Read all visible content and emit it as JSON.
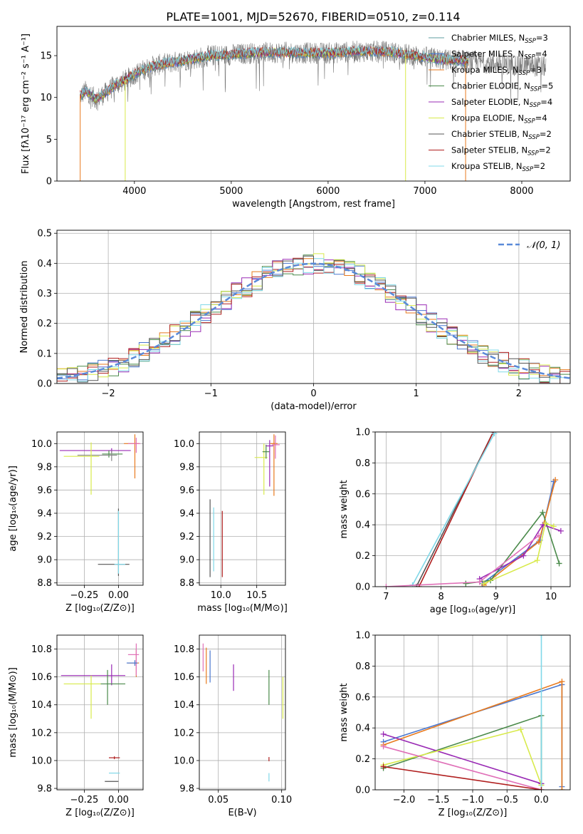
{
  "title": "PLATE=1001, MJD=52670, FIBERID=0510, z=0.114",
  "colors": {
    "chabrier_miles": "#5f9ea0",
    "salpeter_miles": "#4b78d0",
    "kroupa_miles": "#e87a1e",
    "chabrier_elodie": "#4a8a4a",
    "salpeter_elodie": "#9a2bb5",
    "kroupa_elodie": "#d8ea4a",
    "chabrier_stelib": "#555555",
    "salpeter_stelib": "#b01e1e",
    "kroupa_stelib": "#80d8e8",
    "pink": "#e070b8",
    "normal": "#5a8ad8"
  },
  "chart_data": [
    {
      "type": "line",
      "title": "PLATE=1001, MJD=52670, FIBERID=0510, z=0.114",
      "xlabel": "wavelength [Angstrom, rest frame]",
      "ylabel": "Flux [fλ10⁻¹⁷ erg cm⁻² s⁻¹ A⁻¹]",
      "xlim": [
        3200,
        8500
      ],
      "ylim": [
        0,
        18.5
      ],
      "xticks": [
        "4000",
        "5000",
        "6000",
        "7000",
        "8000"
      ],
      "yticks": [
        "0",
        "5",
        "10",
        "15"
      ],
      "grid": false,
      "legend_loc": "upper right",
      "legend": [
        {
          "label": "Chabrier MILES, N",
          "sub": "SSP",
          "eq": "=3",
          "color": "#5f9ea0"
        },
        {
          "label": "Salpeter MILES, N",
          "sub": "SSP",
          "eq": "=4",
          "color": "#4b78d0"
        },
        {
          "label": "Kroupa MILES, N",
          "sub": "SSP",
          "eq": "=3",
          "color": "#e87a1e"
        },
        {
          "label": "Chabrier ELODIE, N",
          "sub": "SSP",
          "eq": "=5",
          "color": "#4a8a4a"
        },
        {
          "label": "Salpeter ELODIE, N",
          "sub": "SSP",
          "eq": "=4",
          "color": "#9a2bb5"
        },
        {
          "label": "Kroupa ELODIE, N",
          "sub": "SSP",
          "eq": "=4",
          "color": "#d8ea4a"
        },
        {
          "label": "Chabrier STELIB, N",
          "sub": "SSP",
          "eq": "=2",
          "color": "#555555"
        },
        {
          "label": "Salpeter STELIB, N",
          "sub": "SSP",
          "eq": "=2",
          "color": "#b01e1e"
        },
        {
          "label": "Kroupa STELIB, N",
          "sub": "SSP",
          "eq": "=2",
          "color": "#80d8e8"
        }
      ],
      "spectrum_anchor_wavelength": [
        3440,
        3500,
        3600,
        3700,
        3800,
        3900,
        4000,
        4200,
        4400,
        4800,
        5000,
        5200,
        5500,
        5800,
        6000,
        6300,
        6600,
        6900,
        7200,
        7500,
        7800,
        8100,
        8250
      ],
      "spectrum_anchor_flux": [
        10.2,
        10.8,
        9.8,
        10.5,
        11.5,
        12.0,
        12.8,
        13.8,
        14.2,
        15.0,
        15.1,
        15.3,
        15.4,
        15.3,
        15.3,
        15.5,
        15.5,
        15.0,
        14.5,
        14.3,
        14.0,
        13.8,
        13.7
      ],
      "model_dropouts": [
        {
          "series": "Kroupa MILES",
          "x": 3440
        },
        {
          "series": "Kroupa ELODIE",
          "x": 3905
        },
        {
          "series": "Kroupa ELODIE",
          "x": 6800
        },
        {
          "series": "Kroupa MILES",
          "x": 7420
        }
      ]
    },
    {
      "type": "bar",
      "histtype": "step",
      "xlabel": "(data-model)/error",
      "ylabel": "Normed distribution",
      "xlim": [
        -2.5,
        2.5
      ],
      "ylim": [
        0,
        0.51
      ],
      "xticks": [
        "−2",
        "−1",
        "0",
        "1",
        "2"
      ],
      "yticks": [
        "0.0",
        "0.1",
        "0.2",
        "0.3",
        "0.4",
        "0.5"
      ],
      "grid": true,
      "bin_width": 0.1,
      "legend": [
        {
          "label": "𝒩(0, 1)",
          "color": "#5a8ad8",
          "style": "dashed"
        }
      ],
      "normal_curve": {
        "mean": 0,
        "sigma": 1
      }
    },
    {
      "type": "scatter",
      "xlabel": "Z [log₁₀(Z/Z⊙)]",
      "ylabel": "age  [log₁₀(age/yr)]",
      "xlim": [
        -0.45,
        0.18
      ],
      "ylim": [
        8.78,
        10.1
      ],
      "xticks": [
        "−0.25",
        "0.00"
      ],
      "yticks": [
        "8.8",
        "9.0",
        "9.2",
        "9.4",
        "9.6",
        "9.8",
        "10.0"
      ],
      "grid": true,
      "errorbars": [
        {
          "x": 0.12,
          "y": 10.0,
          "xerr": [
            0.08,
            0.03
          ],
          "yerr": [
            0.3,
            0.08
          ],
          "color": "#e87a1e"
        },
        {
          "x": 0.13,
          "y": 10.0,
          "xerr": [
            0.06,
            0.03
          ],
          "yerr": [
            0.08,
            0.05
          ],
          "color": "#e070b8"
        },
        {
          "x": -0.05,
          "y": 9.94,
          "xerr": [
            0.38,
            0.14
          ],
          "yerr": [
            0.02,
            0.02
          ],
          "color": "#9a2bb5"
        },
        {
          "x": -0.07,
          "y": 9.91,
          "xerr": [
            0.05,
            0.1
          ],
          "yerr": [
            0.03,
            0.03
          ],
          "color": "#4a8a4a"
        },
        {
          "x": -0.05,
          "y": 9.9,
          "xerr": [
            0.25,
            0.04
          ],
          "yerr": [
            0.05,
            0.04
          ],
          "color": "#888888"
        },
        {
          "x": -0.2,
          "y": 9.89,
          "xerr": [
            0.2,
            0.06
          ],
          "yerr": [
            0.33,
            0.12
          ],
          "color": "#d8ea4a"
        },
        {
          "x": 0.0,
          "y": 8.96,
          "xerr": [
            0.15,
            0.08
          ],
          "yerr": [
            0.1,
            0.48
          ],
          "color": "#555555"
        },
        {
          "x": 0.0,
          "y": 8.96,
          "xerr": [
            0.03,
            0.05
          ],
          "yerr": [
            0.08,
            0.46
          ],
          "color": "#80d8e8"
        }
      ]
    },
    {
      "type": "scatter",
      "xlabel": "mass [log₁₀(M/M⊙)]",
      "xlim": [
        9.7,
        10.9
      ],
      "ylim": [
        8.78,
        10.1
      ],
      "xticks": [
        "10.0",
        "10.5"
      ],
      "yticks": [
        "8.8",
        "9.0",
        "9.2",
        "9.4",
        "9.6",
        "9.8",
        "10.0"
      ],
      "grid": true,
      "errorbars": [
        {
          "x": 9.85,
          "y": 9.0,
          "xerr": [
            0.0,
            0.0
          ],
          "yerr": [
            0.15,
            0.52
          ],
          "color": "#555555"
        },
        {
          "x": 9.9,
          "y": 9.0,
          "xerr": [
            0.0,
            0.0
          ],
          "yerr": [
            0.1,
            0.45
          ],
          "color": "#80d8e8"
        },
        {
          "x": 10.02,
          "y": 9.0,
          "xerr": [
            0.0,
            0.0
          ],
          "yerr": [
            0.15,
            0.42
          ],
          "color": "#b01e1e"
        },
        {
          "x": 10.6,
          "y": 9.88,
          "xerr": [
            0.13,
            0.05
          ],
          "yerr": [
            0.32,
            0.12
          ],
          "color": "#d8ea4a"
        },
        {
          "x": 10.63,
          "y": 9.93,
          "xerr": [
            0.05,
            0.05
          ],
          "yerr": [
            0.06,
            0.06
          ],
          "color": "#4a8a4a"
        },
        {
          "x": 10.68,
          "y": 9.98,
          "xerr": [
            0.05,
            0.05
          ],
          "yerr": [
            0.35,
            0.05
          ],
          "color": "#9a2bb5"
        },
        {
          "x": 10.74,
          "y": 10.0,
          "xerr": [
            0.05,
            0.05
          ],
          "yerr": [
            0.45,
            0.08
          ],
          "color": "#e87a1e"
        },
        {
          "x": 10.76,
          "y": 9.99,
          "xerr": [
            0.05,
            0.06
          ],
          "yerr": [
            0.12,
            0.08
          ],
          "color": "#e070b8"
        }
      ]
    },
    {
      "type": "line",
      "xlabel": "age  [log₁₀(age/yr)]",
      "ylabel": "mass weight",
      "xlim": [
        6.8,
        10.35
      ],
      "ylim": [
        0,
        1.0
      ],
      "xticks": [
        "7",
        "8",
        "9",
        "10"
      ],
      "yticks": [
        "0.0",
        "0.2",
        "0.4",
        "0.6",
        "0.8",
        "1.0"
      ],
      "grid": true,
      "series": [
        {
          "color": "#555555",
          "x": [
            7.55,
            8.95
          ],
          "y": [
            0.0,
            1.0
          ]
        },
        {
          "color": "#b01e1e",
          "x": [
            7.6,
            8.95
          ],
          "y": [
            0.0,
            1.0
          ]
        },
        {
          "color": "#80d8e8",
          "x": [
            7.48,
            8.97
          ],
          "y": [
            0.01,
            0.99
          ]
        },
        {
          "color": "#4b78d0",
          "x": [
            8.75,
            9.8,
            10.05
          ],
          "y": [
            0.02,
            0.3,
            0.68
          ]
        },
        {
          "color": "#e87a1e",
          "x": [
            8.78,
            9.78,
            10.08
          ],
          "y": [
            0.01,
            0.29,
            0.69
          ]
        },
        {
          "color": "#4a8a4a",
          "x": [
            8.45,
            8.9,
            9.85,
            10.15
          ],
          "y": [
            0.02,
            0.04,
            0.48,
            0.15
          ]
        },
        {
          "color": "#9a2bb5",
          "x": [
            8.7,
            9.5,
            9.85,
            10.18
          ],
          "y": [
            0.05,
            0.2,
            0.4,
            0.36
          ]
        },
        {
          "color": "#d8ea4a",
          "x": [
            8.78,
            9.75,
            9.9,
            10.05
          ],
          "y": [
            0.02,
            0.17,
            0.41,
            0.39
          ]
        },
        {
          "color": "#e070b8",
          "x": [
            7.0,
            8.7,
            9.78
          ],
          "y": [
            0.0,
            0.03,
            0.33
          ]
        }
      ]
    },
    {
      "type": "scatter",
      "xlabel": "Z [log₁₀(Z/Z⊙)]",
      "ylabel": "mass [log₁₀(M/M⊙)]",
      "xlim": [
        -0.45,
        0.18
      ],
      "ylim": [
        9.79,
        10.9
      ],
      "xticks": [
        "−0.25",
        "0.00"
      ],
      "yticks": [
        "9.8",
        "10.0",
        "10.2",
        "10.4",
        "10.6",
        "10.8"
      ],
      "grid": true,
      "errorbars": [
        {
          "x": 0.13,
          "y": 10.7,
          "xerr": [
            0.06,
            0.02
          ],
          "yerr": [
            0.1,
            0.1
          ],
          "color": "#e87a1e"
        },
        {
          "x": 0.13,
          "y": 10.76,
          "xerr": [
            0.06,
            0.02
          ],
          "yerr": [
            0.15,
            0.08
          ],
          "color": "#e070b8"
        },
        {
          "x": 0.12,
          "y": 10.7,
          "xerr": [
            0.06,
            0.02
          ],
          "yerr": [
            0.02,
            0.02
          ],
          "color": "#4b78d0"
        },
        {
          "x": -0.05,
          "y": 10.61,
          "xerr": [
            0.37,
            0.1
          ],
          "yerr": [
            0.07,
            0.08
          ],
          "color": "#9a2bb5"
        },
        {
          "x": -0.08,
          "y": 10.55,
          "xerr": [
            0.05,
            0.13
          ],
          "yerr": [
            0.15,
            0.1
          ],
          "color": "#4a8a4a"
        },
        {
          "x": -0.2,
          "y": 10.55,
          "xerr": [
            0.2,
            0.07
          ],
          "yerr": [
            0.25,
            0.06
          ],
          "color": "#d8ea4a"
        },
        {
          "x": -0.03,
          "y": 10.02,
          "xerr": [
            0.04,
            0.04
          ],
          "yerr": [
            0.01,
            0.01
          ],
          "color": "#b01e1e"
        },
        {
          "x": -0.03,
          "y": 9.91,
          "xerr": [
            0.04,
            0.04
          ],
          "yerr": [
            0.0,
            0.0
          ],
          "color": "#80d8e8"
        },
        {
          "x": -0.05,
          "y": 9.85,
          "xerr": [
            0.05,
            0.05
          ],
          "yerr": [
            0.0,
            0.0
          ],
          "color": "#555555"
        }
      ]
    },
    {
      "type": "scatter",
      "xlabel": "E(B-V)",
      "xlim": [
        0.035,
        0.103
      ],
      "ylim": [
        9.79,
        10.9
      ],
      "xticks": [
        "0.05",
        "0.10"
      ],
      "yticks": [
        "9.8",
        "10.0",
        "10.2",
        "10.4",
        "10.6",
        "10.8"
      ],
      "grid": true,
      "errorbars": [
        {
          "x": 0.038,
          "y": 10.74,
          "xerr": [
            0,
            0
          ],
          "yerr": [
            0.1,
            0.1
          ],
          "color": "#e070b8"
        },
        {
          "x": 0.0405,
          "y": 10.71,
          "xerr": [
            0,
            0
          ],
          "yerr": [
            0.16,
            0.1
          ],
          "color": "#e87a1e"
        },
        {
          "x": 0.0435,
          "y": 10.69,
          "xerr": [
            0,
            0
          ],
          "yerr": [
            0.13,
            0.1
          ],
          "color": "#4b78d0"
        },
        {
          "x": 0.062,
          "y": 10.62,
          "xerr": [
            0,
            0
          ],
          "yerr": [
            0.12,
            0.07
          ],
          "color": "#9a2bb5"
        },
        {
          "x": 0.09,
          "y": 10.52,
          "xerr": [
            0,
            0
          ],
          "yerr": [
            0.12,
            0.13
          ],
          "color": "#4a8a4a"
        },
        {
          "x": 0.101,
          "y": 10.45,
          "xerr": [
            0,
            0
          ],
          "yerr": [
            0.15,
            0.15
          ],
          "color": "#d8ea4a"
        },
        {
          "x": 0.09,
          "y": 10.01,
          "xerr": [
            0,
            0
          ],
          "yerr": [
            0.015,
            0.015
          ],
          "color": "#b01e1e"
        },
        {
          "x": 0.09,
          "y": 9.88,
          "xerr": [
            0,
            0
          ],
          "yerr": [
            0.03,
            0.03
          ],
          "color": "#80d8e8"
        }
      ]
    },
    {
      "type": "line",
      "xlabel": "Z [log₁₀(Z/Z⊙)]",
      "ylabel": "mass weight",
      "xlim": [
        -2.42,
        0.42
      ],
      "ylim": [
        0,
        1.0
      ],
      "xticks": [
        "−2.0",
        "−1.5",
        "−1.0",
        "−0.5",
        "0.0"
      ],
      "yticks": [
        "0.0",
        "0.2",
        "0.4",
        "0.6",
        "0.8",
        "1.0"
      ],
      "grid": true,
      "series": [
        {
          "color": "#4b78d0",
          "x": [
            -2.3,
            0.3,
            0.3
          ],
          "y": [
            0.31,
            0.68,
            0.02
          ]
        },
        {
          "color": "#e87a1e",
          "x": [
            -2.3,
            0.3,
            0.3
          ],
          "y": [
            0.29,
            0.7,
            0.0
          ]
        },
        {
          "color": "#4a8a4a",
          "x": [
            -2.3,
            0.0,
            0.0
          ],
          "y": [
            0.14,
            0.48,
            0.03
          ]
        },
        {
          "color": "#9a2bb5",
          "x": [
            -2.3,
            0.0
          ],
          "y": [
            0.36,
            0.04
          ]
        },
        {
          "color": "#d8ea4a",
          "x": [
            -2.3,
            -0.3,
            0.0
          ],
          "y": [
            0.16,
            0.39,
            0.03
          ]
        },
        {
          "color": "#e070b8",
          "x": [
            -2.3,
            0.0
          ],
          "y": [
            0.28,
            0.0
          ]
        },
        {
          "color": "#80d8e8",
          "x": [
            0.0,
            0.0
          ],
          "y": [
            0.0,
            1.0
          ]
        },
        {
          "color": "#b01e1e",
          "x": [
            -2.3,
            0.0
          ],
          "y": [
            0.15,
            0.0
          ]
        }
      ]
    }
  ]
}
